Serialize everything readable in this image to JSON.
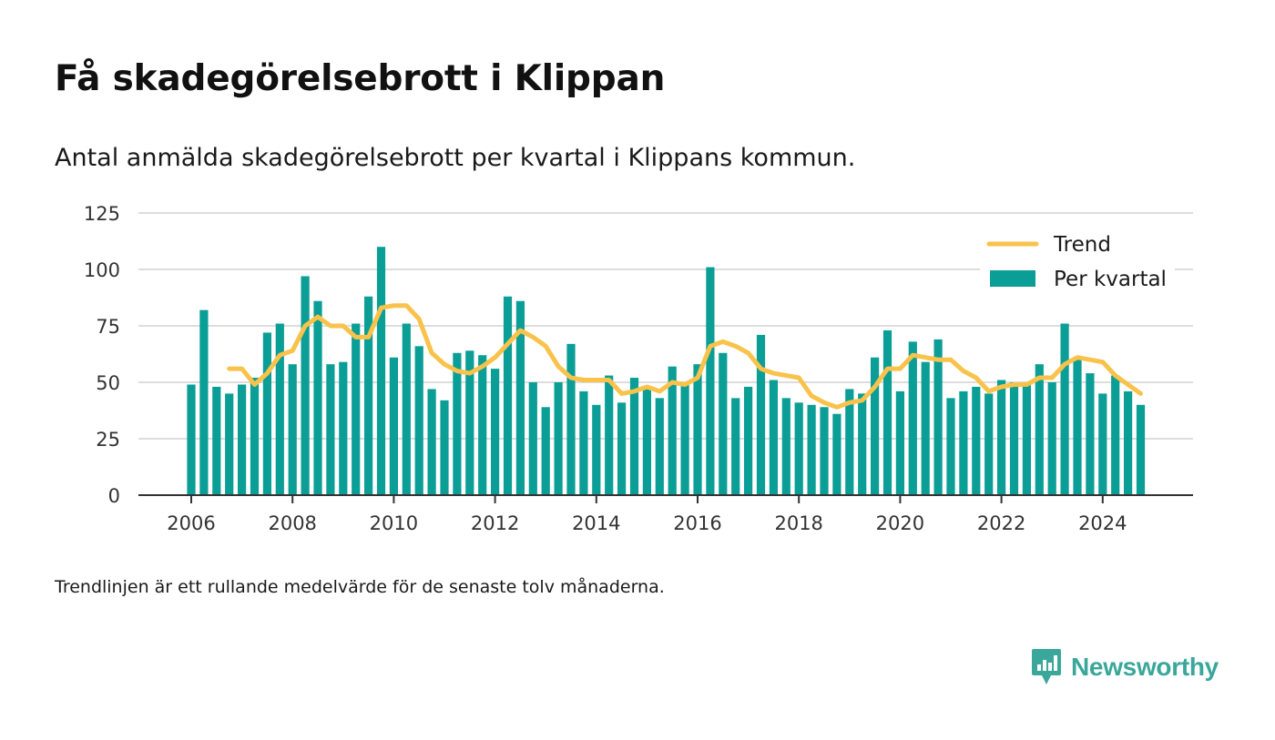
{
  "title": "Få skadegörelsebrott i Klippan",
  "subtitle": "Antal anmälda skadegörelsebrott per kvartal i Klippans kommun.",
  "footnote": "Trendlinjen är ett rullande medelvärde för de senaste tolv månaderna.",
  "brand": {
    "name": "Newsworthy",
    "icon": "newsworthy-chart-bubble-icon"
  },
  "colors": {
    "bars": "#0a9e96",
    "trend": "#f9c24a",
    "grid": "#dddddd",
    "axis": "#333333"
  },
  "chart_data": {
    "type": "bar",
    "title": "Få skadegörelsebrott i Klippan",
    "ylim": [
      0,
      125
    ],
    "yticks": [
      "0",
      "25",
      "50",
      "75",
      "100",
      "125"
    ],
    "xticks": [
      "2006",
      "2008",
      "2010",
      "2012",
      "2014",
      "2016",
      "2018",
      "2020",
      "2022",
      "2024"
    ],
    "grid": true,
    "legend_position": "top-right",
    "x_start_year": 2006,
    "series": [
      {
        "name": "Per kvartal",
        "type": "bar",
        "values": [
          49,
          82,
          48,
          45,
          49,
          52,
          72,
          76,
          58,
          97,
          86,
          58,
          59,
          76,
          88,
          110,
          61,
          76,
          66,
          47,
          42,
          63,
          64,
          62,
          56,
          88,
          86,
          50,
          39,
          50,
          67,
          46,
          40,
          53,
          41,
          52,
          47,
          43,
          57,
          49,
          58,
          101,
          63,
          43,
          48,
          71,
          51,
          43,
          41,
          40,
          39,
          36,
          47,
          45,
          61,
          73,
          46,
          68,
          59,
          69,
          43,
          46,
          48,
          45,
          51,
          50,
          49,
          58,
          50,
          76,
          60,
          54,
          45,
          53,
          46,
          40
        ]
      },
      {
        "name": "Trend",
        "type": "line",
        "values": [
          null,
          null,
          null,
          56,
          56,
          49,
          54,
          62,
          64,
          75,
          79,
          75,
          75,
          70,
          70,
          83,
          84,
          84,
          78,
          63,
          58,
          55,
          54,
          57,
          61,
          67,
          73,
          70,
          66,
          57,
          52,
          51,
          51,
          51,
          45,
          46,
          48,
          46,
          50,
          49,
          52,
          66,
          68,
          66,
          63,
          56,
          54,
          53,
          52,
          44,
          41,
          39,
          41,
          42,
          48,
          56,
          56,
          62,
          61,
          60,
          60,
          55,
          52,
          46,
          48,
          49,
          49,
          52,
          52,
          58,
          61,
          60,
          59,
          53,
          49,
          45
        ]
      }
    ]
  }
}
